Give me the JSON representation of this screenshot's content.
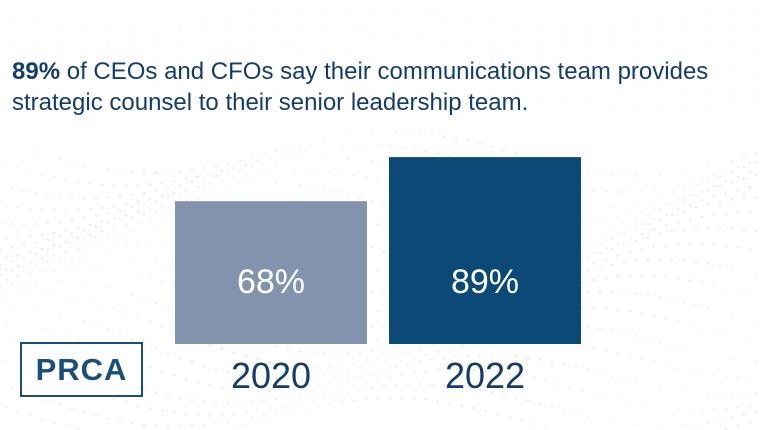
{
  "headline": {
    "emphasis": "89%",
    "rest": " of CEOs and CFOs say their communications team provides strategic counsel to their senior leadership team."
  },
  "logo": {
    "text": "PRCA"
  },
  "colors": {
    "bar_2020": "#8294ad",
    "bar_2022": "#0b4a76",
    "text_dark": "#143d6b",
    "value_label": "#ffffff"
  },
  "chart_data": {
    "type": "bar",
    "categories": [
      "2020",
      "2022"
    ],
    "values": [
      68,
      89
    ],
    "value_labels": [
      "68%",
      "89%"
    ],
    "title": "",
    "xlabel": "",
    "ylabel": "",
    "ylim": [
      0,
      100
    ],
    "grid": false,
    "legend": "none"
  }
}
